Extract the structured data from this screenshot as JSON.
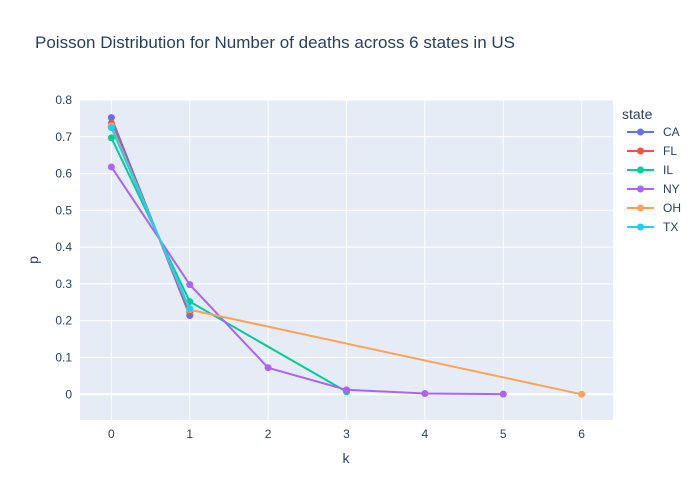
{
  "chart_data": {
    "type": "line",
    "title": "Poisson Distribution for Number of deaths across 6 states in US",
    "xlabel": "k",
    "ylabel": "p",
    "xlim": [
      -0.4,
      6.4
    ],
    "ylim": [
      -0.07,
      0.8
    ],
    "xticks": [
      0,
      1,
      2,
      3,
      4,
      5,
      6
    ],
    "yticks": [
      0,
      0.1,
      0.2,
      0.3,
      0.4,
      0.5,
      0.6,
      0.7,
      0.8
    ],
    "ytick_labels": [
      "0",
      "0.1",
      "0.2",
      "0.3",
      "0.4",
      "0.5",
      "0.6",
      "0.7",
      "0.8"
    ],
    "grid": true,
    "legend_title": "state",
    "legend_position": "right",
    "series": [
      {
        "name": "CA",
        "color": "#636efa",
        "x": [
          0,
          1
        ],
        "y": [
          0.752,
          0.214
        ]
      },
      {
        "name": "FL",
        "color": "#ef553b",
        "x": [
          0,
          1
        ],
        "y": [
          0.737,
          0.225
        ]
      },
      {
        "name": "IL",
        "color": "#00cc96",
        "x": [
          0,
          1,
          3
        ],
        "y": [
          0.697,
          0.252,
          0.007
        ]
      },
      {
        "name": "NY",
        "color": "#ab63fa",
        "x": [
          0,
          1,
          2,
          3,
          4,
          5
        ],
        "y": [
          0.618,
          0.298,
          0.072,
          0.012,
          0.002,
          0.0003
        ]
      },
      {
        "name": "OH",
        "color": "#ffa15a",
        "x": [
          0,
          1,
          6
        ],
        "y": [
          0.73,
          0.23,
          0.0
        ]
      },
      {
        "name": "TX",
        "color": "#19d3f3",
        "x": [
          0,
          1
        ],
        "y": [
          0.725,
          0.233
        ]
      }
    ]
  }
}
